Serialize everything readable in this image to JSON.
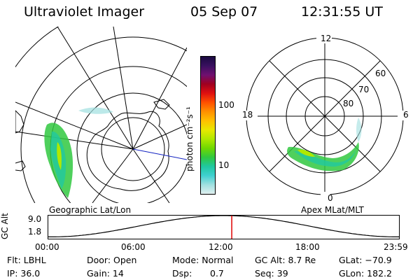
{
  "header": {
    "instrument": "Ultraviolet Imager",
    "date": "05 Sep 07",
    "time": "12:31:55 UT"
  },
  "geo_panel": {
    "label": "Geographic Lat/Lon"
  },
  "apex_panel": {
    "label": "Apex MLat/MLT",
    "mlt_labels": {
      "top": "12",
      "left": "18",
      "right": "6",
      "bottom": "0"
    },
    "mlat_labels": [
      "60",
      "70",
      "80"
    ]
  },
  "colorbar": {
    "unit_label": "photon cm⁻²s⁻¹",
    "ticks": [
      "100",
      "10"
    ],
    "colors": [
      "#1a0a40",
      "#3a1060",
      "#701070",
      "#a00020",
      "#e01010",
      "#ff5000",
      "#ff9000",
      "#ffc000",
      "#e8e800",
      "#b0e800",
      "#70d800",
      "#30c840",
      "#20c8a0",
      "#40d0d0",
      "#a0e0e0",
      "#e0f0f0"
    ]
  },
  "altitude_plot": {
    "ylabel": "GC Alt",
    "yticks": [
      "9.0",
      "1.8"
    ],
    "xticks": [
      "00:00",
      "06:00",
      "12:00",
      "18:00",
      "23:59"
    ],
    "marker_color": "#e00000",
    "current_time_hours": 12.53
  },
  "info": {
    "filter": "Flt: LBHL",
    "ip": "IP: 36.0",
    "door": "Door: Open",
    "gain": "Gain: 14",
    "mode": "Mode: Normal",
    "dsp_label": "Dsp:",
    "dsp_value": "0.7",
    "gc_alt": "GC Alt: 8.7 Re",
    "seq": "Seq: 39",
    "glat": "GLat: −70.9",
    "glon": "GLon: 182.2"
  }
}
